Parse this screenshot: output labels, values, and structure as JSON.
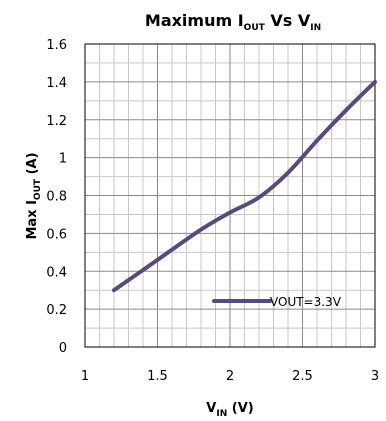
{
  "chart_data": {
    "type": "line",
    "title": {
      "main": "Maximum I",
      "sub1": "OUT",
      "mid": " Vs  V",
      "sub2": "IN"
    },
    "xlabel": {
      "main": "V",
      "sub": "IN",
      "rest": " (V)"
    },
    "ylabel": {
      "main": "Max I",
      "sub": "OUT",
      "rest": " (A)"
    },
    "xlim": [
      1,
      3
    ],
    "ylim": [
      0,
      1.6
    ],
    "x_major_ticks": [
      1,
      1.5,
      2,
      2.5,
      3
    ],
    "x_tick_labels": [
      "1",
      "1.5",
      "2",
      "2.5",
      "3"
    ],
    "y_major_ticks": [
      0,
      0.2,
      0.4,
      0.6,
      0.8,
      1,
      1.2,
      1.4,
      1.6
    ],
    "y_tick_labels": [
      "0",
      "0.2",
      "0.4",
      "0.6",
      "0.8",
      "1",
      "1.2",
      "1.4",
      "1.6"
    ],
    "x_minor_step": 0.1,
    "y_minor_step": 0.1,
    "grid": true,
    "legend_position": "bottom-right",
    "series": [
      {
        "name": "VOUT=3.3V",
        "color": "#5a4a78",
        "x": [
          1.2,
          1.5,
          1.8,
          2.0,
          2.2,
          2.4,
          2.6,
          2.8,
          3.0
        ],
        "y": [
          0.3,
          0.46,
          0.62,
          0.71,
          0.79,
          0.92,
          1.09,
          1.25,
          1.4
        ]
      }
    ]
  }
}
